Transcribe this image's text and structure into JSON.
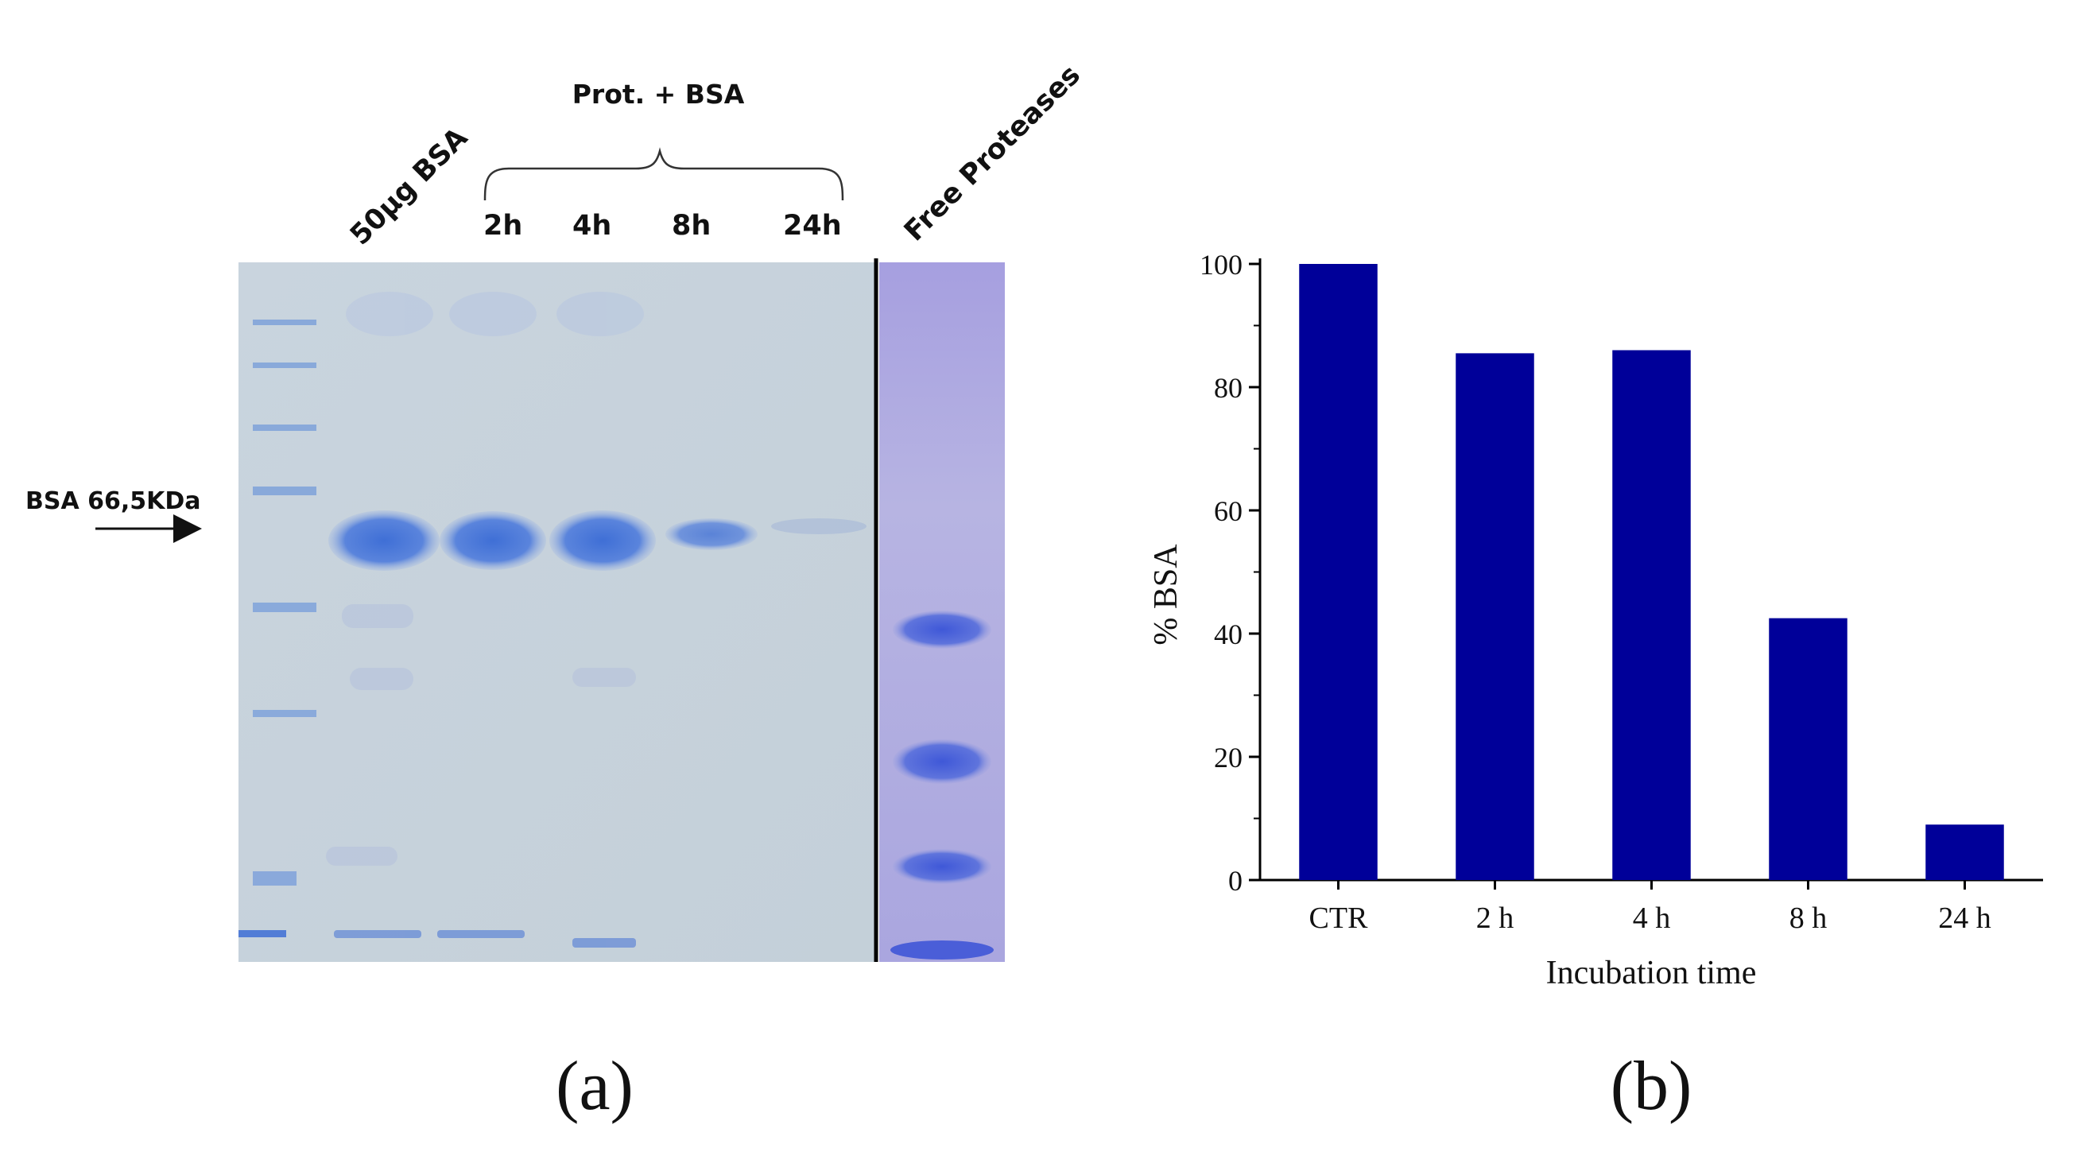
{
  "panel_a": {
    "caption": "(a)",
    "group_label": "Prot. + BSA",
    "lane_labels": [
      "50µg BSA",
      "2h",
      "4h",
      "8h",
      "24h",
      "Free Proteases"
    ],
    "band_label": "BSA 66,5KDa",
    "colors": {
      "gel_background": "#c6d2dc",
      "band": "#4f7ad8",
      "proteases_lane": "#a9a2dc"
    }
  },
  "panel_b": {
    "caption": "(b)"
  },
  "chart_data": {
    "type": "bar",
    "categories": [
      "CTR",
      "2 h",
      "4 h",
      "8 h",
      "24 h"
    ],
    "values": [
      100,
      85.5,
      86,
      42.5,
      9
    ],
    "xlabel": "Incubation time",
    "ylabel": "% BSA",
    "ylim": [
      0,
      100
    ],
    "yticks": [
      0,
      20,
      40,
      60,
      80,
      100
    ],
    "bar_color": "#000099",
    "grid": false
  }
}
